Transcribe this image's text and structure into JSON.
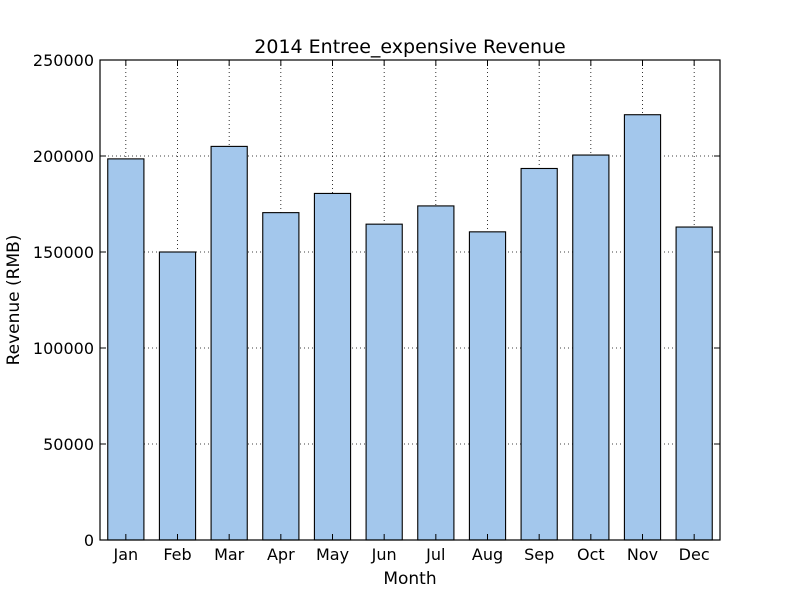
{
  "chart_data": {
    "type": "bar",
    "title": "2014 Entree_expensive Revenue",
    "xlabel": "Month",
    "ylabel": "Revenue (RMB)",
    "categories": [
      "Jan",
      "Feb",
      "Mar",
      "Apr",
      "May",
      "Jun",
      "Jul",
      "Aug",
      "Sep",
      "Oct",
      "Nov",
      "Dec"
    ],
    "values": [
      198500,
      150000,
      205000,
      170500,
      180500,
      164500,
      174000,
      160500,
      193500,
      200500,
      221500,
      163000
    ],
    "ylim": [
      0,
      250000
    ],
    "yticks": [
      "0",
      "50000",
      "100000",
      "150000",
      "200000",
      "250000"
    ],
    "grid": true,
    "bar_color": "#a3c7ec",
    "edge_color": "#000000"
  }
}
